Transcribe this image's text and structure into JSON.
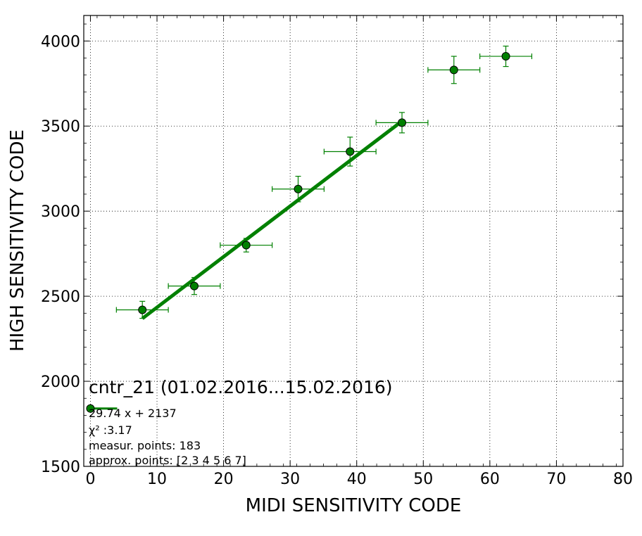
{
  "chart_data": {
    "type": "scatter",
    "xlabel": "MIDI SENSITIVITY CODE",
    "ylabel": "HIGH SENSITIVITY CODE",
    "xlim": [
      -1,
      80
    ],
    "ylim": [
      1500,
      4150
    ],
    "xticks": [
      0,
      10,
      20,
      30,
      40,
      50,
      60,
      70,
      80
    ],
    "yticks": [
      1500,
      2000,
      2500,
      3000,
      3500,
      4000
    ],
    "grid": true,
    "colors": {
      "points": "#008000",
      "fit": "#008000",
      "axes": "#000000"
    },
    "series": [
      {
        "points": [
          {
            "x": 7.8,
            "y": 2420,
            "xerr": 3.9,
            "yerr": 50
          },
          {
            "x": 15.6,
            "y": 2560,
            "xerr": 3.9,
            "yerr": 50
          },
          {
            "x": 23.4,
            "y": 2800,
            "xerr": 3.9,
            "yerr": 40
          },
          {
            "x": 31.2,
            "y": 3130,
            "xerr": 3.9,
            "yerr": 75
          },
          {
            "x": 39.0,
            "y": 3350,
            "xerr": 3.9,
            "yerr": 85
          },
          {
            "x": 46.8,
            "y": 3520,
            "xerr": 3.9,
            "yerr": 60
          },
          {
            "x": 54.6,
            "y": 3830,
            "xerr": 3.9,
            "yerr": 80
          },
          {
            "x": 62.4,
            "y": 3910,
            "xerr": 3.9,
            "yerr": 60
          }
        ]
      }
    ],
    "fit": {
      "slope": 29.74,
      "intercept": 2137,
      "x_range": [
        7.8,
        46.8
      ]
    },
    "legend": {
      "marker_point": {
        "x": 0,
        "y": 1840
      },
      "title": "cntr_21 (01.02.2016...15.02.2016)",
      "lines": [
        "29.74 x + 2137",
        "χ² :3.17",
        "measur. points: 183",
        "approx. points: [2 3 4 5 6 7]"
      ]
    }
  }
}
